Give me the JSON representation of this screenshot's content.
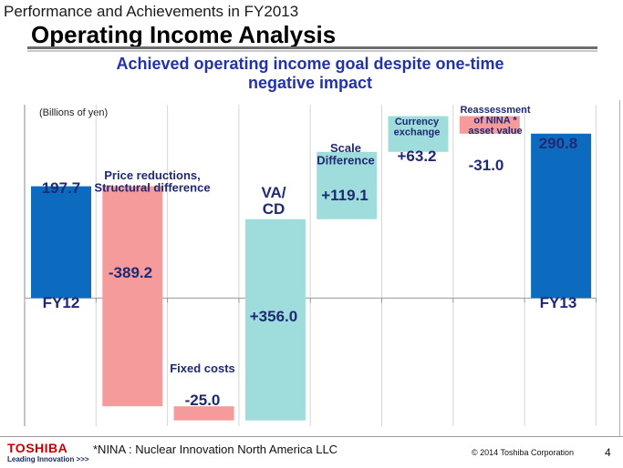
{
  "slide": {
    "subtitle": "Performance and Achievements in FY2013",
    "title": "Operating Income Analysis",
    "headline": "Achieved operating income goal despite one-time\nnegative impact",
    "footnote": "*NINA : Nuclear Innovation North America LLC",
    "copyright": "© 2014 Toshiba Corporation",
    "page_number": "4"
  },
  "logo": {
    "name": "TOSHIBA",
    "tagline": "Leading Innovation >>>"
  },
  "colors": {
    "total": "#0d6bbf",
    "increase": "#9fdcdc",
    "decrease": "#f59b9b",
    "value_text": "#1f2a73"
  },
  "chart_data": {
    "type": "waterfall",
    "unit_label": "(Billions of yen)",
    "steps": [
      {
        "label": "FY12",
        "kind": "total",
        "value": 197.7,
        "display": "197.7"
      },
      {
        "label": "Price reductions,\nStructural difference",
        "kind": "delta",
        "value": -389.2,
        "display": "-389.2"
      },
      {
        "label": "Fixed costs",
        "kind": "delta",
        "value": -25.0,
        "display": "-25.0"
      },
      {
        "label": "VA/\nCD",
        "kind": "delta",
        "value": 356.0,
        "display": "+356.0"
      },
      {
        "label": "Scale\nDifference",
        "kind": "delta",
        "value": 119.1,
        "display": "+119.1"
      },
      {
        "label": "Currency\nexchange",
        "kind": "delta",
        "value": 63.2,
        "display": "+63.2"
      },
      {
        "label": "Reassessment\nof NINA *\nasset value",
        "kind": "delta",
        "value": -31.0,
        "display": "-31.0"
      },
      {
        "label": "FY13",
        "kind": "total",
        "value": 290.8,
        "display": "290.8"
      }
    ],
    "ylim": [
      -226.6,
      342.0
    ]
  }
}
